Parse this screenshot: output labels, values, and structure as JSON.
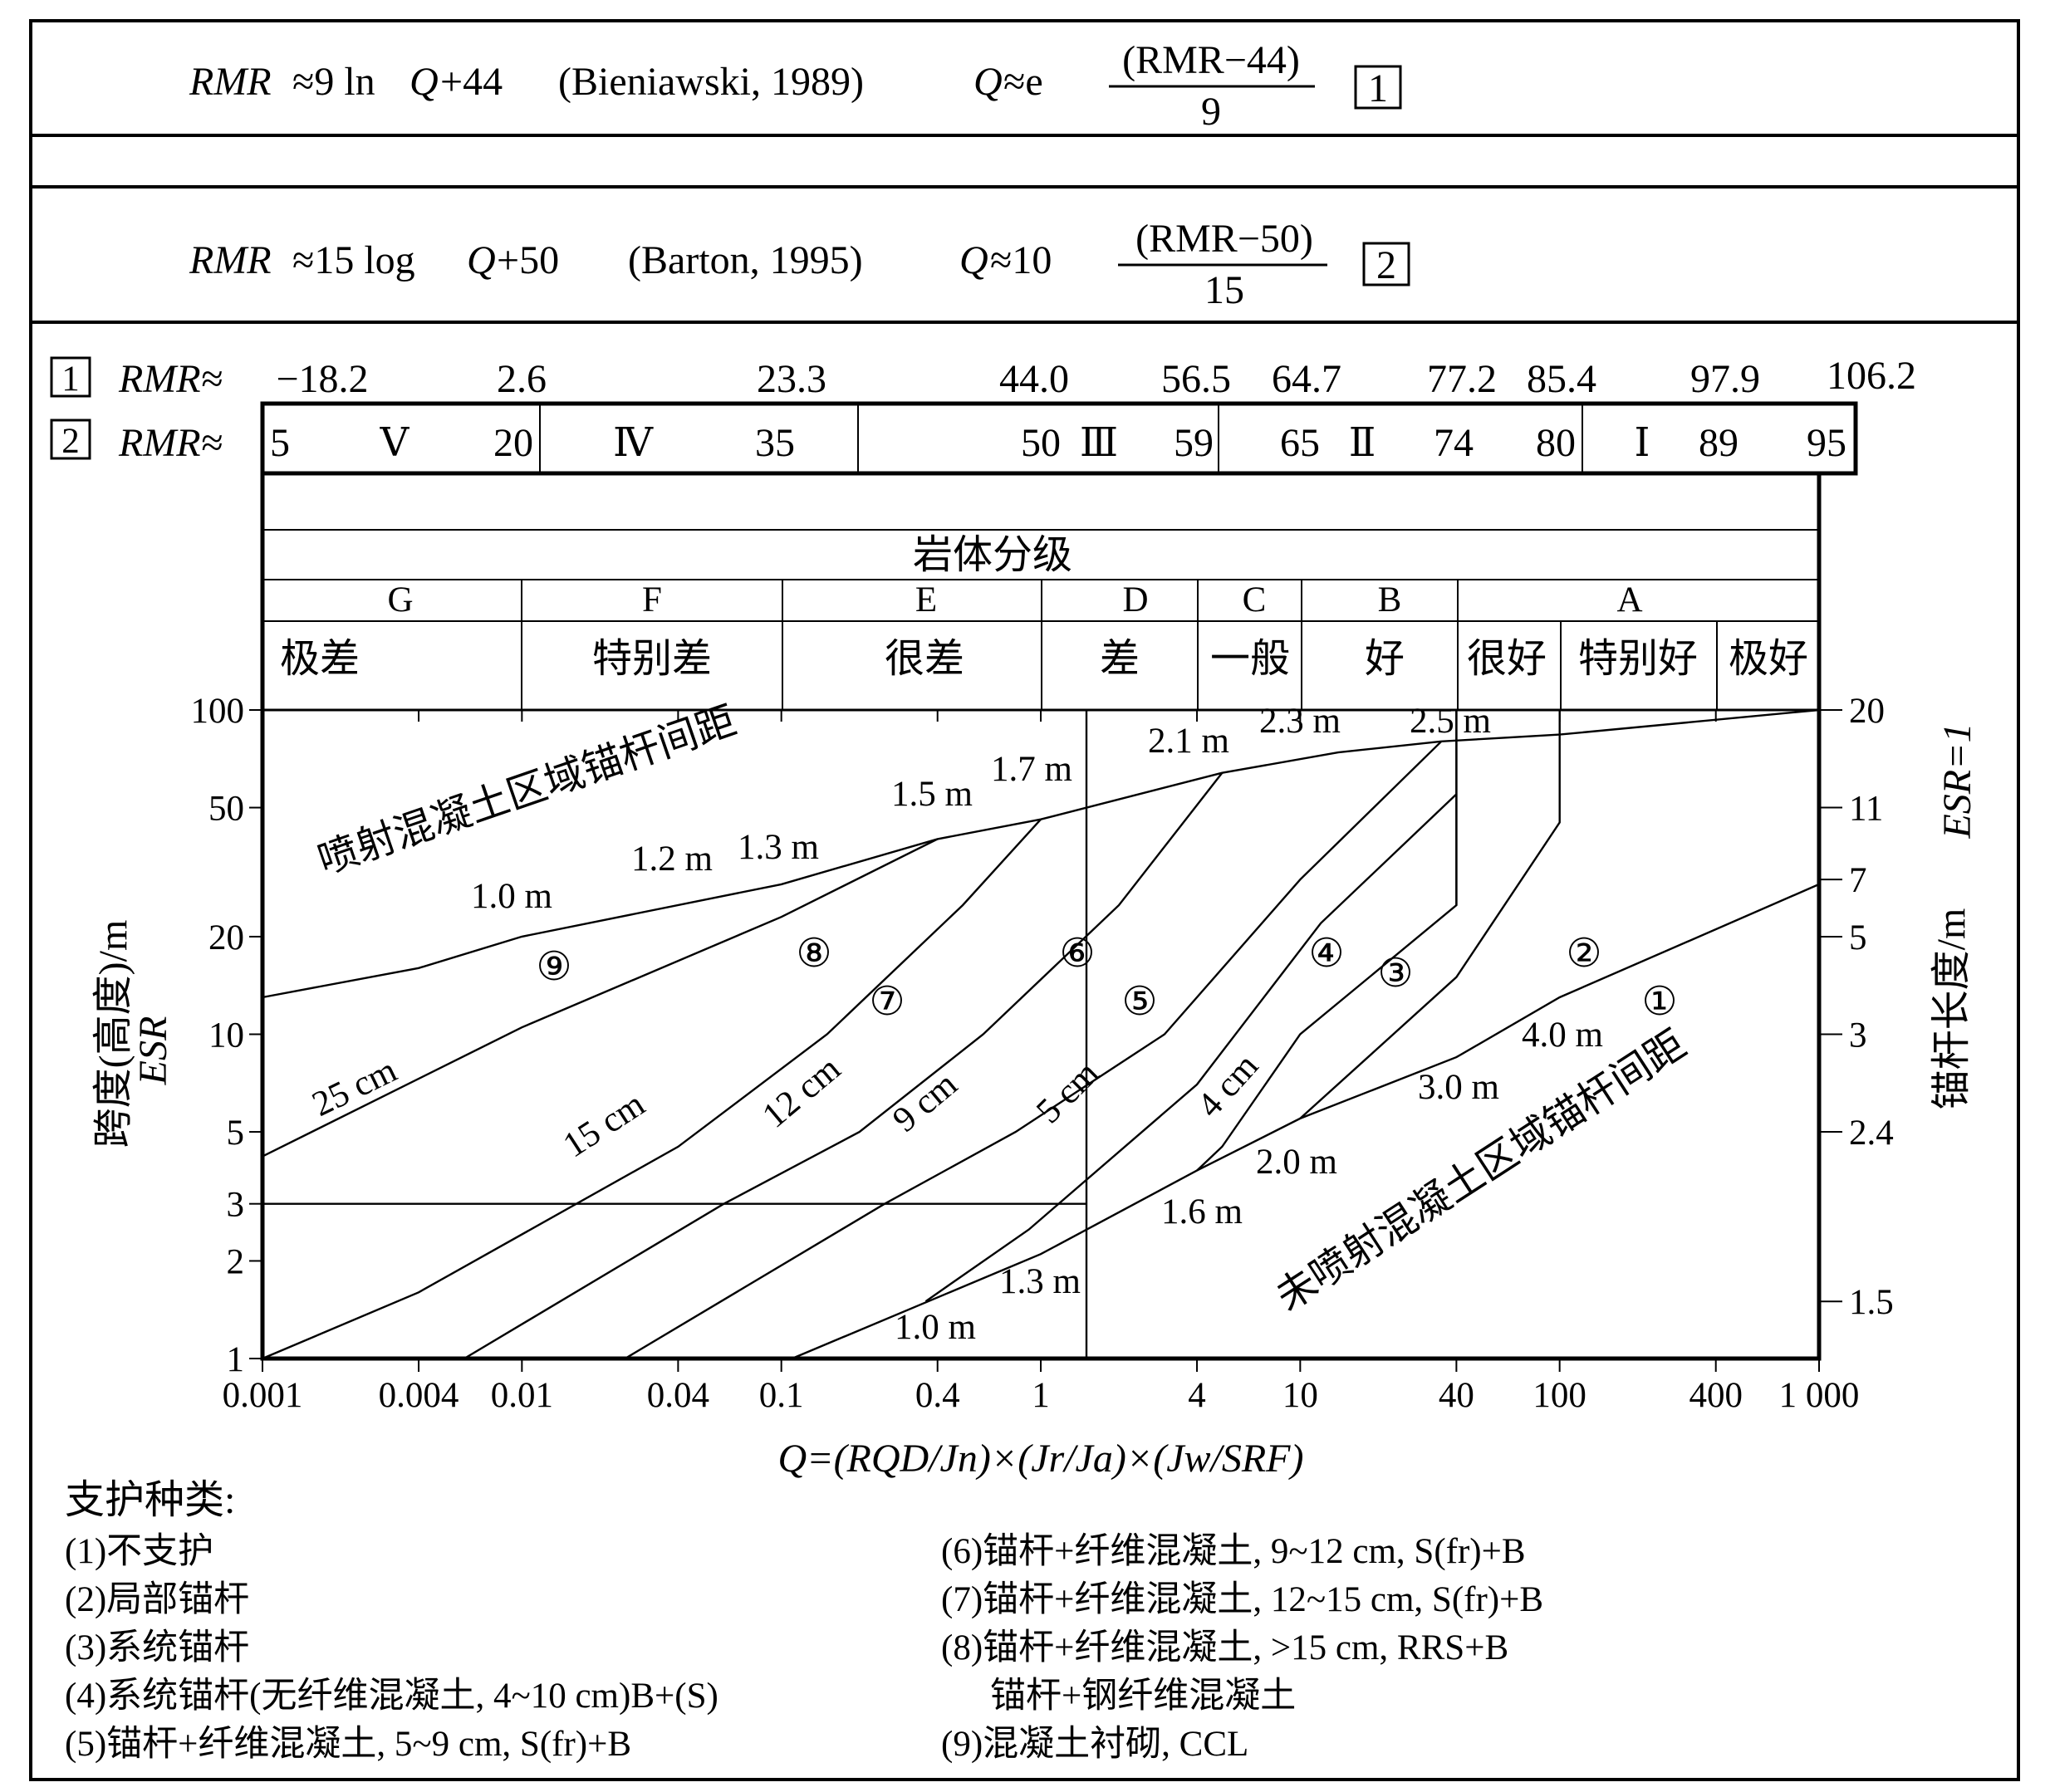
{
  "formulas": {
    "f1_lhs": "RMR",
    "f1_rel": "≈9 ln",
    "f1_q": "Q",
    "f1_tail": "+44",
    "f1_ref": "(Bieniawski, 1989)",
    "f1_Q": "Q",
    "f1_approx": "≈e",
    "f1_num": "(RMR−44)",
    "f1_den": "9",
    "f1_tag": "1",
    "f2_lhs": "RMR",
    "f2_rel": "≈15 log",
    "f2_q": "Q",
    "f2_tail": "+50",
    "f2_ref": "(Barton, 1995)",
    "f2_Q": "Q",
    "f2_approx": "≈10",
    "f2_num": "(RMR−50)",
    "f2_den": "15",
    "f2_tag": "2"
  },
  "rmr_rows": {
    "row1_tag": "1",
    "row1_prefix": "RMR≈",
    "row1_values": [
      "−18.2",
      "2.6",
      "23.3",
      "44.0",
      "56.5",
      "64.7",
      "77.2",
      "85.4",
      "97.9",
      "106.2"
    ],
    "row2_tag": "2",
    "row2_prefix": "RMR≈",
    "row2_values": [
      "5",
      "20",
      "35",
      "50",
      "59",
      "65",
      "74",
      "80",
      "89",
      "95"
    ],
    "roman": [
      "Ⅴ",
      "Ⅳ",
      "Ⅲ",
      "Ⅱ",
      "Ⅰ"
    ]
  },
  "classification": {
    "title": "岩体分级",
    "letters": [
      "G",
      "F",
      "E",
      "D",
      "C",
      "B",
      "A"
    ],
    "names": [
      "极差",
      "特别差",
      "很差",
      "差",
      "一般",
      "好",
      "很好",
      "特别好",
      "极好"
    ]
  },
  "axes": {
    "y_left_label_1": "跨度(高度)/m",
    "y_left_label_2": "ESR",
    "y_right_label_1": "锚杆长度/m",
    "y_right_label_2": "ESR=1",
    "x_label": "Q=(RQD/Jn)×(Jr/Ja)×(Jw/SRF)"
  },
  "chart_data": {
    "type": "line",
    "x_scale": "log",
    "y_scale": "log",
    "xlim": [
      0.001,
      1000
    ],
    "ylim": [
      1,
      100
    ],
    "x_ticks": [
      0.001,
      0.004,
      0.01,
      0.04,
      0.1,
      0.4,
      1,
      4,
      10,
      40,
      100,
      400,
      1000
    ],
    "x_tick_labels": [
      "0.001",
      "0.004",
      "0.01",
      "0.04",
      "0.1",
      "0.4",
      "1",
      "4",
      "10",
      "40",
      "100",
      "400",
      "1 000"
    ],
    "y_ticks": [
      1,
      2,
      3,
      5,
      10,
      20,
      50,
      100
    ],
    "y_tick_labels": [
      "1",
      "2",
      "3",
      "5",
      "10",
      "20",
      "50",
      "100"
    ],
    "y_right_tick_values": [
      1.5,
      2.4,
      3,
      5,
      7,
      11,
      20
    ],
    "y_right_tick_labels": [
      "1.5",
      "2.4",
      "3",
      "5",
      "7",
      "11",
      "20"
    ],
    "region_labels": [
      "喷射混凝土区域锚杆间距",
      "未喷射混凝土区域锚杆间距"
    ],
    "shotcrete_thickness_labels": [
      "25 cm",
      "15 cm",
      "12 cm",
      "9 cm",
      "5 cm",
      "4 cm"
    ],
    "bolt_spacing_shotcrete": [
      "1.0 m",
      "1.2 m",
      "1.3 m",
      "1.5 m",
      "1.7 m",
      "2.1 m",
      "2.3 m",
      "2.5 m"
    ],
    "bolt_spacing_unshotcrete": [
      "1.0 m",
      "1.3 m",
      "1.6 m",
      "2.0 m",
      "3.0 m",
      "4.0 m"
    ],
    "zone_numbers": [
      "①",
      "②",
      "③",
      "④",
      "⑤",
      "⑥",
      "⑦",
      "⑧",
      "⑨"
    ],
    "series": [
      {
        "name": "upper boundary",
        "x": [
          0.001,
          0.004,
          0.01,
          0.1,
          0.4,
          1,
          5,
          14,
          35,
          100,
          1000
        ],
        "y": [
          13,
          16,
          20,
          29,
          40,
          46,
          64,
          74,
          80,
          84,
          100
        ]
      },
      {
        "name": "9/8 boundary",
        "x": [
          0.001,
          0.01,
          0.1,
          0.4
        ],
        "y": [
          4.2,
          10.5,
          23,
          40
        ]
      },
      {
        "name": "8/7 boundary",
        "x": [
          0.001,
          0.004,
          0.04,
          0.15,
          0.5,
          1
        ],
        "y": [
          1,
          1.6,
          4.5,
          10,
          25,
          46
        ]
      },
      {
        "name": "7/6 boundary",
        "x": [
          0.006,
          0.06,
          0.2,
          0.6,
          2,
          5
        ],
        "y": [
          1,
          3,
          5,
          10,
          25,
          64
        ]
      },
      {
        "name": "6/5 boundary",
        "x": [
          0.025,
          0.25,
          0.8,
          3,
          10,
          35
        ],
        "y": [
          1,
          3,
          5,
          10,
          30,
          80
        ]
      },
      {
        "name": "5/4 boundary",
        "x": [
          0.36,
          0.45,
          0.9,
          4,
          12,
          40
        ],
        "y": [
          1.5,
          1.7,
          2.5,
          7,
          22,
          55
        ]
      },
      {
        "name": "4/3 boundary",
        "x": [
          4,
          5,
          10,
          40,
          40
        ],
        "y": [
          3.8,
          4.5,
          10,
          25,
          100
        ]
      },
      {
        "name": "3/2 boundary",
        "x": [
          10,
          40,
          100,
          100
        ],
        "y": [
          5.5,
          15,
          45,
          100
        ]
      },
      {
        "name": "2/1 boundary",
        "x": [
          0.11,
          1,
          4,
          10,
          40,
          100,
          1000
        ],
        "y": [
          1,
          2.1,
          3.8,
          5.5,
          8.5,
          13,
          29
        ]
      },
      {
        "name": "ESR 3 line",
        "x": [
          0.001,
          1.5
        ],
        "y": [
          3,
          3
        ]
      },
      {
        "name": "Q 1.5 vertical",
        "x": [
          1.5,
          1.5
        ],
        "y": [
          1,
          100
        ]
      },
      {
        "name": "Q 40 vertical",
        "x": [
          40,
          40
        ],
        "y": [
          25,
          100
        ]
      }
    ]
  },
  "legend": {
    "title": "支护种类:",
    "items_left": [
      "(1)不支护",
      "(2)局部锚杆",
      "(3)系统锚杆",
      "(4)系统锚杆(无纤维混凝土, 4~10 cm)B+(S)",
      "(5)锚杆+纤维混凝土, 5~9 cm, S(fr)+B"
    ],
    "items_right": [
      "(6)锚杆+纤维混凝土, 9~12 cm, S(fr)+B",
      "(7)锚杆+纤维混凝土, 12~15 cm, S(fr)+B",
      "(8)锚杆+纤维混凝土, >15 cm, RRS+B",
      "锚杆+钢纤维混凝土",
      "(9)混凝土衬砌, CCL"
    ]
  }
}
